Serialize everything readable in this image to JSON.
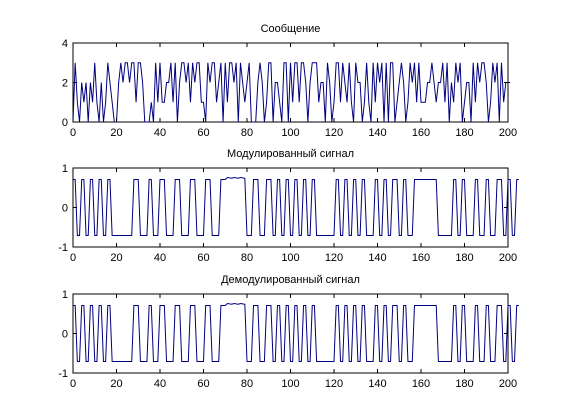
{
  "chart_data": [
    {
      "type": "line",
      "title": "Сообщение",
      "xlabel": "",
      "ylabel": "",
      "xlim": [
        0,
        200
      ],
      "ylim": [
        0,
        4
      ],
      "xticks": [
        "0",
        "20",
        "40",
        "60",
        "80",
        "100",
        "120",
        "140",
        "160",
        "180",
        "200"
      ],
      "yticks": [
        "0",
        "2",
        "4"
      ],
      "grid": false,
      "series": [
        {
          "color": "#00007f",
          "x_start": 0,
          "x_step": 1,
          "values": [
            0,
            3,
            1,
            0,
            2,
            1,
            2,
            0,
            2,
            1,
            3,
            1,
            0,
            2,
            0,
            1,
            3,
            2,
            1,
            0,
            0,
            2,
            3,
            2,
            3,
            3,
            2,
            3,
            3,
            1,
            3,
            3,
            2,
            0,
            0,
            0,
            1,
            0,
            3,
            1,
            3,
            1,
            1,
            2,
            2,
            3,
            1,
            3,
            0,
            2,
            3,
            3,
            2,
            3,
            1,
            3,
            2,
            3,
            3,
            1,
            1,
            0,
            3,
            2,
            3,
            3,
            1,
            2,
            3,
            0,
            3,
            1,
            3,
            3,
            2,
            3,
            0,
            3,
            2,
            1,
            2,
            3,
            0,
            0,
            0,
            2,
            3,
            2,
            0,
            1,
            3,
            3,
            0,
            2,
            2,
            1,
            0,
            3,
            3,
            0,
            3,
            1,
            3,
            3,
            1,
            3,
            3,
            2,
            0,
            2,
            3,
            3,
            3,
            1,
            2,
            2,
            0,
            3,
            2,
            0,
            1,
            3,
            3,
            1,
            3,
            2,
            1,
            3,
            1,
            0,
            3,
            2,
            2,
            0,
            1,
            3,
            1,
            0,
            3,
            1,
            3,
            2,
            3,
            0,
            3,
            0,
            3,
            3,
            0,
            1,
            2,
            3,
            2,
            0,
            1,
            3,
            2,
            3,
            1,
            3,
            1,
            1,
            1,
            2,
            2,
            3,
            2,
            1,
            2,
            2,
            3,
            1,
            3,
            0,
            2,
            1,
            3,
            2,
            3,
            0,
            1,
            2,
            2,
            0,
            3,
            1,
            3,
            2,
            3,
            3,
            2,
            0,
            1,
            3,
            2,
            3,
            0,
            3,
            1,
            2,
            2,
            2
          ]
        }
      ]
    },
    {
      "type": "line",
      "title": "Модулированный сигнал",
      "xlabel": "",
      "ylabel": "",
      "xlim": [
        0,
        200
      ],
      "ylim": [
        -1,
        1
      ],
      "xticks": [
        "0",
        "20",
        "40",
        "60",
        "80",
        "100",
        "120",
        "140",
        "160",
        "180",
        "200"
      ],
      "yticks": [
        "-1",
        "0",
        "1"
      ],
      "grid": false,
      "series": [
        {
          "color": "#00007f",
          "x_start": 0,
          "x_step": 1,
          "values": [
            0.71,
            0.71,
            -0.71,
            -0.71,
            0.71,
            0.71,
            -0.71,
            -0.71,
            0.71,
            0.71,
            -0.71,
            -0.71,
            0.71,
            0.71,
            -0.71,
            -0.71,
            0.71,
            0.71,
            -0.71,
            -0.71,
            -0.71,
            -0.71,
            -0.71,
            -0.71,
            -0.71,
            -0.71,
            -0.71,
            -0.71,
            0.71,
            0.71,
            0.71,
            -0.71,
            -0.71,
            -0.71,
            -0.71,
            0.71,
            0.71,
            -0.71,
            -0.71,
            -0.71,
            0.71,
            0.71,
            0.71,
            -0.71,
            -0.71,
            -0.71,
            -0.71,
            0.71,
            0.71,
            0.71,
            -0.71,
            -0.71,
            -0.71,
            -0.71,
            0.71,
            0.71,
            0.71,
            -0.71,
            -0.71,
            -0.71,
            -0.71,
            0.71,
            0.71,
            0.71,
            -0.71,
            -0.71,
            -0.71,
            -0.71,
            0.71,
            0.71,
            0.71,
            0.76,
            0.75,
            0.74,
            0.76,
            0.75,
            0.74,
            0.76,
            0.75,
            0.74,
            -0.71,
            -0.71,
            -0.71,
            0.71,
            0.71,
            0.71,
            -0.71,
            -0.71,
            -0.71,
            0.71,
            0.71,
            0.71,
            -0.71,
            -0.71,
            0.71,
            0.71,
            -0.71,
            -0.71,
            0.71,
            0.71,
            -0.71,
            -0.71,
            0.71,
            0.71,
            -0.71,
            -0.71,
            0.71,
            0.71,
            -0.71,
            -0.71,
            0.71,
            0.71,
            -0.71,
            -0.71,
            -0.71,
            -0.71,
            -0.71,
            -0.71,
            -0.71,
            -0.71,
            -0.71,
            0.71,
            0.71,
            -0.71,
            -0.71,
            0.71,
            0.71,
            -0.71,
            -0.71,
            0.71,
            0.71,
            -0.71,
            -0.71,
            0.71,
            0.71,
            -0.71,
            -0.71,
            -0.71,
            -0.71,
            0.71,
            0.71,
            -0.71,
            -0.71,
            0.71,
            0.71,
            -0.71,
            -0.71,
            0.71,
            0.71,
            0.71,
            -0.71,
            -0.71,
            0.71,
            0.71,
            -0.71,
            -0.71,
            -0.71,
            0.71,
            0.71,
            0.71,
            0.71,
            0.71,
            0.71,
            0.71,
            0.71,
            0.71,
            0.71,
            0.71,
            -0.71,
            -0.71,
            -0.71,
            -0.71,
            -0.71,
            -0.71,
            -0.71,
            0.71,
            0.71,
            -0.71,
            -0.71,
            0.71,
            0.71,
            -0.71,
            -0.71,
            -0.71,
            -0.71,
            0.71,
            0.71,
            -0.71,
            -0.71,
            -0.71,
            0.71,
            0.71,
            -0.71,
            -0.71,
            -0.71,
            0.71,
            0.71,
            0.71,
            -0.71,
            -0.71,
            0.71,
            0.71,
            -0.71,
            -0.71,
            0.71,
            0.71
          ]
        }
      ]
    },
    {
      "type": "line",
      "title": "Демодулированный сигнал",
      "xlabel": "",
      "ylabel": "",
      "xlim": [
        0,
        200
      ],
      "ylim": [
        -1,
        1
      ],
      "xticks": [
        "0",
        "20",
        "40",
        "60",
        "80",
        "100",
        "120",
        "140",
        "160",
        "180",
        "200"
      ],
      "yticks": [
        "-1",
        "0",
        "1"
      ],
      "grid": false,
      "series": [
        {
          "color": "#00007f",
          "x_start": 0,
          "x_step": 1,
          "values": [
            0.71,
            0.71,
            -0.71,
            -0.71,
            0.71,
            0.71,
            -0.71,
            -0.71,
            0.71,
            0.71,
            -0.71,
            -0.71,
            0.71,
            0.71,
            -0.71,
            -0.71,
            0.71,
            0.71,
            -0.71,
            -0.71,
            -0.71,
            -0.71,
            -0.71,
            -0.71,
            -0.71,
            -0.71,
            -0.71,
            -0.71,
            0.71,
            0.71,
            0.71,
            -0.71,
            -0.71,
            -0.71,
            -0.71,
            0.71,
            0.71,
            -0.71,
            -0.71,
            -0.71,
            0.71,
            0.71,
            0.71,
            -0.71,
            -0.71,
            -0.71,
            -0.71,
            0.71,
            0.71,
            0.71,
            -0.71,
            -0.71,
            -0.71,
            -0.71,
            0.71,
            0.71,
            0.71,
            -0.71,
            -0.71,
            -0.71,
            -0.71,
            0.71,
            0.71,
            0.71,
            -0.71,
            -0.71,
            -0.71,
            -0.71,
            0.71,
            0.71,
            0.71,
            0.76,
            0.75,
            0.74,
            0.76,
            0.75,
            0.74,
            0.76,
            0.75,
            0.74,
            -0.71,
            -0.71,
            -0.71,
            0.71,
            0.71,
            0.71,
            -0.71,
            -0.71,
            -0.71,
            0.71,
            0.71,
            0.71,
            -0.71,
            -0.71,
            0.71,
            0.71,
            -0.71,
            -0.71,
            0.71,
            0.71,
            -0.71,
            -0.71,
            0.71,
            0.71,
            -0.71,
            -0.71,
            0.71,
            0.71,
            -0.71,
            -0.71,
            0.71,
            0.71,
            -0.71,
            -0.71,
            -0.71,
            -0.71,
            -0.71,
            -0.71,
            -0.71,
            -0.71,
            -0.71,
            0.71,
            0.71,
            -0.71,
            -0.71,
            0.71,
            0.71,
            -0.71,
            -0.71,
            0.71,
            0.71,
            -0.71,
            -0.71,
            0.71,
            0.71,
            -0.71,
            -0.71,
            -0.71,
            -0.71,
            0.71,
            0.71,
            -0.71,
            -0.71,
            0.71,
            0.71,
            -0.71,
            -0.71,
            0.71,
            0.71,
            0.71,
            -0.71,
            -0.71,
            0.71,
            0.71,
            -0.71,
            -0.71,
            -0.71,
            0.71,
            0.71,
            0.71,
            0.71,
            0.71,
            0.71,
            0.71,
            0.71,
            0.71,
            0.71,
            0.71,
            -0.71,
            -0.71,
            -0.71,
            -0.71,
            -0.71,
            -0.71,
            -0.71,
            0.71,
            0.71,
            -0.71,
            -0.71,
            0.71,
            0.71,
            -0.71,
            -0.71,
            -0.71,
            -0.71,
            0.71,
            0.71,
            -0.71,
            -0.71,
            -0.71,
            0.71,
            0.71,
            -0.71,
            -0.71,
            -0.71,
            0.71,
            0.71,
            0.71,
            -0.71,
            -0.71,
            0.71,
            0.71,
            -0.71,
            -0.71,
            0.71,
            0.71
          ]
        }
      ]
    }
  ]
}
